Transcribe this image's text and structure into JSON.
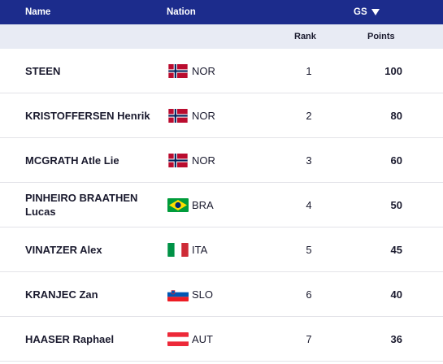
{
  "header": {
    "name_label": "Name",
    "nation_label": "Nation",
    "discipline_label": "GS"
  },
  "subheader": {
    "rank_label": "Rank",
    "points_label": "Points"
  },
  "colors": {
    "header_bg": "#1c2c8c",
    "subheader_bg": "#e8ebf4"
  },
  "rows": [
    {
      "name": "STEEN",
      "nation": "NOR",
      "flag": "norway-flag-icon",
      "rank": "1",
      "points": "100"
    },
    {
      "name": "KRISTOFFERSEN Henrik",
      "nation": "NOR",
      "flag": "norway-flag-icon",
      "rank": "2",
      "points": "80"
    },
    {
      "name": "MCGRATH Atle Lie",
      "nation": "NOR",
      "flag": "norway-flag-icon",
      "rank": "3",
      "points": "60"
    },
    {
      "name": "PINHEIRO BRAATHEN Lucas",
      "nation": "BRA",
      "flag": "brazil-flag-icon",
      "rank": "4",
      "points": "50"
    },
    {
      "name": "VINATZER Alex",
      "nation": "ITA",
      "flag": "italy-flag-icon",
      "rank": "5",
      "points": "45"
    },
    {
      "name": "KRANJEC Zan",
      "nation": "SLO",
      "flag": "slovenia-flag-icon",
      "rank": "6",
      "points": "40"
    },
    {
      "name": "HAASER Raphael",
      "nation": "AUT",
      "flag": "austria-flag-icon",
      "rank": "7",
      "points": "36"
    }
  ]
}
